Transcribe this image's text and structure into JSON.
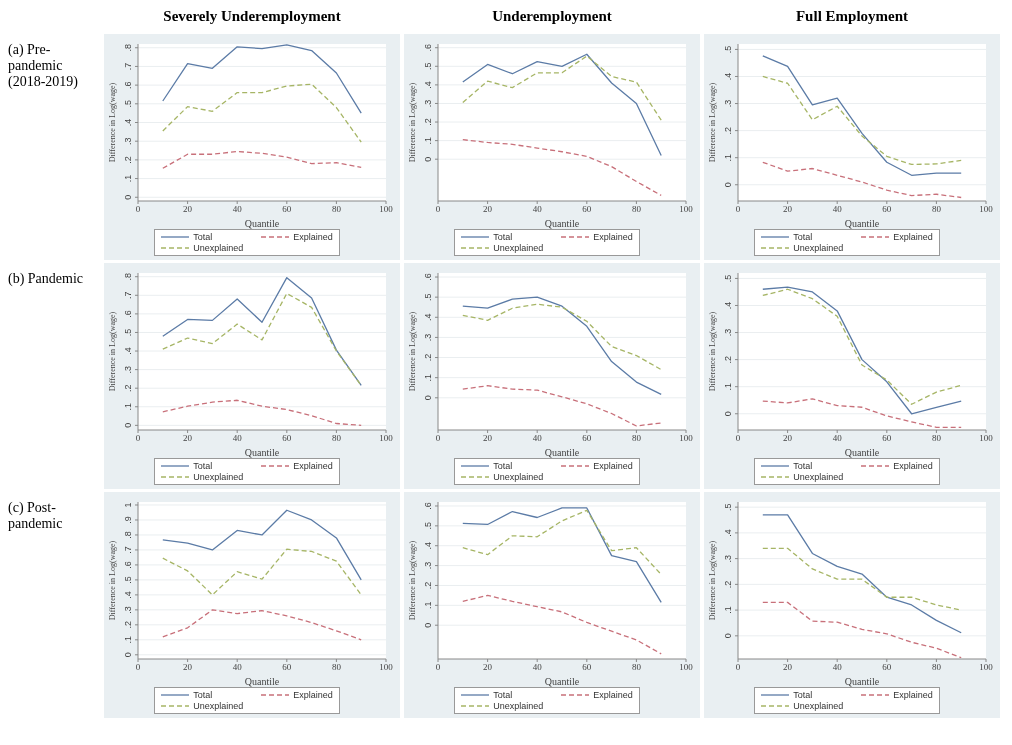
{
  "chart_data": [
    {
      "type": "line",
      "title": "Severely Underemployment",
      "annotations": [
        "(a) Pre-pandemic (2018-2019)"
      ],
      "xlabel": "Quantile",
      "ylabel": "Difference in Log(wage)",
      "x": [
        10,
        20,
        30,
        40,
        50,
        60,
        70,
        80,
        90
      ],
      "xlim": [
        0,
        100
      ],
      "xticks": [
        0,
        20,
        40,
        60,
        80,
        100
      ],
      "ylim": [
        -0.02,
        0.82
      ],
      "yticks": [
        {
          "value": 0,
          "label": "0"
        },
        {
          "value": 0.1,
          "label": ".1"
        },
        {
          "value": 0.2,
          "label": ".2"
        },
        {
          "value": 0.3,
          "label": ".3"
        },
        {
          "value": 0.4,
          "label": ".4"
        },
        {
          "value": 0.5,
          "label": ".5"
        },
        {
          "value": 0.6,
          "label": ".6"
        },
        {
          "value": 0.7,
          "label": ".7"
        },
        {
          "value": 0.8,
          "label": ".8"
        }
      ],
      "grid": "y",
      "legend": "bottom",
      "series": [
        {
          "name": "Total",
          "color": "#5b7ba6",
          "line_style": "solid",
          "values": [
            0.515,
            0.715,
            0.69,
            0.805,
            0.795,
            0.815,
            0.785,
            0.665,
            0.45
          ]
        },
        {
          "name": "Explained",
          "color": "#c8707a",
          "line_style": "dashed",
          "values": [
            0.155,
            0.23,
            0.23,
            0.245,
            0.235,
            0.215,
            0.18,
            0.185,
            0.16
          ]
        },
        {
          "name": "Unexplained",
          "color": "#a6b565",
          "line_style": "dashed",
          "values": [
            0.355,
            0.485,
            0.46,
            0.56,
            0.56,
            0.595,
            0.605,
            0.48,
            0.295
          ]
        }
      ]
    },
    {
      "type": "line",
      "title": "Underemployment",
      "xlabel": "Quantile",
      "ylabel": "Difference in Log(wage)",
      "x": [
        10,
        20,
        30,
        40,
        50,
        60,
        70,
        80,
        90
      ],
      "xlim": [
        0,
        100
      ],
      "xticks": [
        0,
        20,
        40,
        60,
        80,
        100
      ],
      "ylim": [
        -0.225,
        0.62
      ],
      "yticks": [
        {
          "value": 0,
          "label": "0"
        },
        {
          "value": 0.1,
          "label": ".1"
        },
        {
          "value": 0.2,
          "label": ".2"
        },
        {
          "value": 0.3,
          "label": ".3"
        },
        {
          "value": 0.4,
          "label": ".4"
        },
        {
          "value": 0.5,
          "label": ".5"
        },
        {
          "value": 0.6,
          "label": ".6"
        }
      ],
      "grid": "y",
      "legend": "bottom",
      "series": [
        {
          "name": "Total",
          "color": "#5b7ba6",
          "line_style": "solid",
          "values": [
            0.415,
            0.51,
            0.46,
            0.525,
            0.5,
            0.565,
            0.41,
            0.3,
            0.02
          ]
        },
        {
          "name": "Explained",
          "color": "#c8707a",
          "line_style": "dashed",
          "values": [
            0.105,
            0.09,
            0.08,
            0.06,
            0.04,
            0.015,
            -0.04,
            -0.12,
            -0.195
          ]
        },
        {
          "name": "Unexplained",
          "color": "#a6b565",
          "line_style": "dashed",
          "values": [
            0.305,
            0.42,
            0.385,
            0.465,
            0.465,
            0.555,
            0.445,
            0.415,
            0.21
          ]
        }
      ]
    },
    {
      "type": "line",
      "title": "Full Employment",
      "xlabel": "Quantile",
      "ylabel": "Difference in Log(wage)",
      "x": [
        10,
        20,
        30,
        40,
        50,
        60,
        70,
        80,
        90
      ],
      "xlim": [
        0,
        100
      ],
      "xticks": [
        0,
        20,
        40,
        60,
        80,
        100
      ],
      "ylim": [
        -0.06,
        0.52
      ],
      "yticks": [
        {
          "value": 0,
          "label": "0"
        },
        {
          "value": 0.1,
          "label": ".1"
        },
        {
          "value": 0.2,
          "label": ".2"
        },
        {
          "value": 0.3,
          "label": ".3"
        },
        {
          "value": 0.4,
          "label": ".4"
        },
        {
          "value": 0.5,
          "label": ".5"
        }
      ],
      "grid": "y",
      "legend": "bottom",
      "series": [
        {
          "name": "Total",
          "color": "#5b7ba6",
          "line_style": "solid",
          "values": [
            0.476,
            0.437,
            0.295,
            0.32,
            0.19,
            0.083,
            0.035,
            0.043,
            0.043
          ]
        },
        {
          "name": "Explained",
          "color": "#c8707a",
          "line_style": "dashed",
          "values": [
            0.083,
            0.05,
            0.06,
            0.035,
            0.01,
            -0.02,
            -0.04,
            -0.035,
            -0.047
          ]
        },
        {
          "name": "Unexplained",
          "color": "#a6b565",
          "line_style": "dashed",
          "values": [
            0.4,
            0.375,
            0.24,
            0.29,
            0.18,
            0.105,
            0.075,
            0.077,
            0.09
          ]
        }
      ]
    },
    {
      "type": "line",
      "annotations": [
        "(b) Pandemic"
      ],
      "xlabel": "Quantile",
      "ylabel": "Difference in Log(wage)",
      "x": [
        10,
        20,
        30,
        40,
        50,
        60,
        70,
        80,
        90
      ],
      "xlim": [
        0,
        100
      ],
      "xticks": [
        0,
        20,
        40,
        60,
        80,
        100
      ],
      "ylim": [
        -0.025,
        0.82
      ],
      "yticks": [
        {
          "value": 0,
          "label": "0"
        },
        {
          "value": 0.1,
          "label": ".1"
        },
        {
          "value": 0.2,
          "label": ".2"
        },
        {
          "value": 0.3,
          "label": ".3"
        },
        {
          "value": 0.4,
          "label": ".4"
        },
        {
          "value": 0.5,
          "label": ".5"
        },
        {
          "value": 0.6,
          "label": ".6"
        },
        {
          "value": 0.7,
          "label": ".7"
        },
        {
          "value": 0.8,
          "label": ".8"
        }
      ],
      "grid": "y",
      "legend": "bottom",
      "series": [
        {
          "name": "Total",
          "color": "#5b7ba6",
          "line_style": "solid",
          "values": [
            0.48,
            0.57,
            0.565,
            0.68,
            0.555,
            0.795,
            0.685,
            0.405,
            0.215
          ]
        },
        {
          "name": "Explained",
          "color": "#c8707a",
          "line_style": "dashed",
          "values": [
            0.073,
            0.103,
            0.125,
            0.135,
            0.103,
            0.085,
            0.052,
            0.01,
            0
          ]
        },
        {
          "name": "Unexplained",
          "color": "#a6b565",
          "line_style": "dashed",
          "values": [
            0.41,
            0.47,
            0.44,
            0.545,
            0.46,
            0.71,
            0.635,
            0.4,
            0.215
          ]
        }
      ]
    },
    {
      "type": "line",
      "xlabel": "Quantile",
      "ylabel": "Difference in Log(wage)",
      "x": [
        10,
        20,
        30,
        40,
        50,
        60,
        70,
        80,
        90
      ],
      "xlim": [
        0,
        100
      ],
      "xticks": [
        0,
        20,
        40,
        60,
        80,
        100
      ],
      "ylim": [
        -0.16,
        0.62
      ],
      "yticks": [
        {
          "value": 0,
          "label": "0"
        },
        {
          "value": 0.1,
          "label": ".1"
        },
        {
          "value": 0.2,
          "label": ".2"
        },
        {
          "value": 0.3,
          "label": ".3"
        },
        {
          "value": 0.4,
          "label": ".4"
        },
        {
          "value": 0.5,
          "label": ".5"
        },
        {
          "value": 0.6,
          "label": ".6"
        }
      ],
      "grid": "y",
      "legend": "bottom",
      "series": [
        {
          "name": "Total",
          "color": "#5b7ba6",
          "line_style": "solid",
          "values": [
            0.455,
            0.445,
            0.49,
            0.5,
            0.455,
            0.355,
            0.18,
            0.078,
            0.017
          ]
        },
        {
          "name": "Explained",
          "color": "#c8707a",
          "line_style": "dashed",
          "values": [
            0.043,
            0.06,
            0.043,
            0.038,
            0.005,
            -0.03,
            -0.078,
            -0.14,
            -0.125
          ]
        },
        {
          "name": "Unexplained",
          "color": "#a6b565",
          "line_style": "dashed",
          "values": [
            0.41,
            0.385,
            0.445,
            0.465,
            0.45,
            0.38,
            0.255,
            0.21,
            0.14
          ]
        }
      ]
    },
    {
      "type": "line",
      "xlabel": "Quantile",
      "ylabel": "Difference in Log(wage)",
      "x": [
        10,
        20,
        30,
        40,
        50,
        60,
        70,
        80,
        90
      ],
      "xlim": [
        0,
        100
      ],
      "xticks": [
        0,
        20,
        40,
        60,
        80,
        100
      ],
      "ylim": [
        -0.06,
        0.52
      ],
      "yticks": [
        {
          "value": 0,
          "label": "0"
        },
        {
          "value": 0.1,
          "label": ".1"
        },
        {
          "value": 0.2,
          "label": ".2"
        },
        {
          "value": 0.3,
          "label": ".3"
        },
        {
          "value": 0.4,
          "label": ".4"
        },
        {
          "value": 0.5,
          "label": ".5"
        }
      ],
      "grid": "y",
      "legend": "bottom",
      "series": [
        {
          "name": "Total",
          "color": "#5b7ba6",
          "line_style": "solid",
          "values": [
            0.46,
            0.468,
            0.45,
            0.38,
            0.2,
            0.118,
            0,
            0.024,
            0.047
          ]
        },
        {
          "name": "Explained",
          "color": "#c8707a",
          "line_style": "dashed",
          "values": [
            0.047,
            0.04,
            0.055,
            0.03,
            0.024,
            -0.008,
            -0.03,
            -0.05,
            -0.05
          ]
        },
        {
          "name": "Unexplained",
          "color": "#a6b565",
          "line_style": "dashed",
          "values": [
            0.437,
            0.46,
            0.425,
            0.36,
            0.18,
            0.125,
            0.035,
            0.08,
            0.105
          ]
        }
      ]
    },
    {
      "type": "line",
      "annotations": [
        "(c) Post-pandemic"
      ],
      "xlabel": "Quantile",
      "ylabel": "Difference in Log(wage)",
      "x": [
        10,
        20,
        30,
        40,
        50,
        60,
        70,
        80,
        90
      ],
      "xlim": [
        0,
        100
      ],
      "xticks": [
        0,
        20,
        40,
        60,
        80,
        100
      ],
      "ylim": [
        -0.028,
        1.02
      ],
      "yticks": [
        {
          "value": 0,
          "label": "0"
        },
        {
          "value": 0.1,
          "label": ".1"
        },
        {
          "value": 0.2,
          "label": ".2"
        },
        {
          "value": 0.3,
          "label": ".3"
        },
        {
          "value": 0.4,
          "label": ".4"
        },
        {
          "value": 0.5,
          "label": ".5"
        },
        {
          "value": 0.6,
          "label": ".6"
        },
        {
          "value": 0.7,
          "label": ".7"
        },
        {
          "value": 0.8,
          "label": ".8"
        },
        {
          "value": 0.9,
          "label": ".9"
        },
        {
          "value": 1,
          "label": "1"
        }
      ],
      "grid": "y",
      "legend": "bottom",
      "series": [
        {
          "name": "Total",
          "color": "#5b7ba6",
          "line_style": "solid",
          "values": [
            0.767,
            0.745,
            0.7,
            0.83,
            0.8,
            0.965,
            0.9,
            0.78,
            0.5
          ]
        },
        {
          "name": "Explained",
          "color": "#c8707a",
          "line_style": "dashed",
          "values": [
            0.12,
            0.18,
            0.3,
            0.275,
            0.295,
            0.26,
            0.215,
            0.16,
            0.1
          ]
        },
        {
          "name": "Unexplained",
          "color": "#a6b565",
          "line_style": "dashed",
          "values": [
            0.645,
            0.56,
            0.4,
            0.555,
            0.505,
            0.705,
            0.69,
            0.625,
            0.4
          ]
        }
      ]
    },
    {
      "type": "line",
      "xlabel": "Quantile",
      "ylabel": "Difference in Log(wage)",
      "x": [
        10,
        20,
        30,
        40,
        50,
        60,
        70,
        80,
        90
      ],
      "xlim": [
        0,
        100
      ],
      "xticks": [
        0,
        20,
        40,
        60,
        80,
        100
      ],
      "ylim": [
        -0.17,
        0.62
      ],
      "yticks": [
        {
          "value": 0,
          "label": "0"
        },
        {
          "value": 0.1,
          "label": ".1"
        },
        {
          "value": 0.2,
          "label": ".2"
        },
        {
          "value": 0.3,
          "label": ".3"
        },
        {
          "value": 0.4,
          "label": ".4"
        },
        {
          "value": 0.5,
          "label": ".5"
        },
        {
          "value": 0.6,
          "label": ".6"
        }
      ],
      "grid": "y",
      "legend": "bottom",
      "series": [
        {
          "name": "Total",
          "color": "#5b7ba6",
          "line_style": "solid",
          "values": [
            0.512,
            0.507,
            0.572,
            0.542,
            0.59,
            0.59,
            0.35,
            0.32,
            0.115
          ]
        },
        {
          "name": "Explained",
          "color": "#c8707a",
          "line_style": "dashed",
          "values": [
            0.12,
            0.15,
            0.12,
            0.093,
            0.067,
            0.014,
            -0.03,
            -0.074,
            -0.144
          ]
        },
        {
          "name": "Unexplained",
          "color": "#a6b565",
          "line_style": "dashed",
          "values": [
            0.39,
            0.355,
            0.45,
            0.445,
            0.525,
            0.578,
            0.375,
            0.39,
            0.255
          ]
        }
      ]
    },
    {
      "type": "line",
      "xlabel": "Quantile",
      "ylabel": "Difference in Log(wage)",
      "x": [
        10,
        20,
        30,
        40,
        50,
        60,
        70,
        80,
        90
      ],
      "xlim": [
        0,
        100
      ],
      "xticks": [
        0,
        20,
        40,
        60,
        80,
        100
      ],
      "ylim": [
        -0.09,
        0.52
      ],
      "yticks": [
        {
          "value": 0,
          "label": "0"
        },
        {
          "value": 0.1,
          "label": ".1"
        },
        {
          "value": 0.2,
          "label": ".2"
        },
        {
          "value": 0.3,
          "label": ".3"
        },
        {
          "value": 0.4,
          "label": ".4"
        },
        {
          "value": 0.5,
          "label": ".5"
        }
      ],
      "grid": "y",
      "legend": "bottom",
      "series": [
        {
          "name": "Total",
          "color": "#5b7ba6",
          "line_style": "solid",
          "values": [
            0.47,
            0.47,
            0.32,
            0.27,
            0.24,
            0.15,
            0.12,
            0.06,
            0.012
          ]
        },
        {
          "name": "Explained",
          "color": "#c8707a",
          "line_style": "dashed",
          "values": [
            0.13,
            0.13,
            0.057,
            0.053,
            0.025,
            0.008,
            -0.025,
            -0.048,
            -0.085
          ]
        },
        {
          "name": "Unexplained",
          "color": "#a6b565",
          "line_style": "dashed",
          "values": [
            0.34,
            0.34,
            0.26,
            0.22,
            0.22,
            0.15,
            0.15,
            0.12,
            0.1
          ]
        }
      ]
    }
  ]
}
